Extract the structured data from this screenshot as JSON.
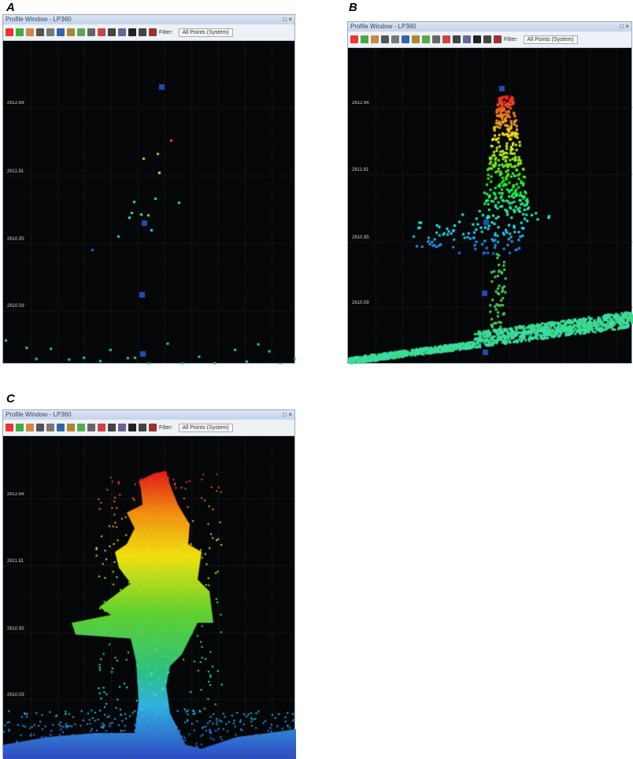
{
  "panels": [
    {
      "label": "A",
      "window_title": "Profile Window - LP360",
      "filter_label": "Filter:",
      "filter_value": "All Points (System)",
      "y_ticks": [
        "2612.66",
        "2611.81",
        "2610.95",
        "2610.09"
      ]
    },
    {
      "label": "B",
      "window_title": "Profile Window - LP360",
      "filter_label": "Filter:",
      "filter_value": "All Points (System)",
      "y_ticks": [
        "2612.66",
        "2611.81",
        "2610.95",
        "2610.09"
      ]
    },
    {
      "label": "C",
      "window_title": "Profile Window - LP360",
      "filter_label": "Filter:",
      "filter_value": "All Points (System)",
      "y_ticks": [
        "2612.66",
        "2611.81",
        "2610.95",
        "2610.09"
      ]
    }
  ],
  "window_controls": "□ ×",
  "colors": {
    "background": "#050607",
    "grid": "#3a3a3a",
    "marker": "#1f4fb0",
    "high": "#e02020",
    "mid": "#f0e020",
    "low": "#30d090",
    "ground": "#3060c0"
  }
}
